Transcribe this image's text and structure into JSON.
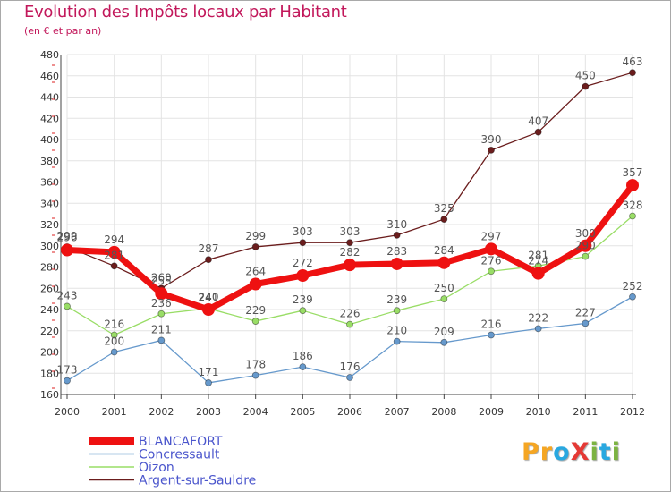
{
  "header": {
    "title": "Evolution des Impôts locaux par Habitant",
    "subtitle": "(en € et par an)"
  },
  "logo": {
    "text": "ProXiti",
    "letters": [
      {
        "ch": "P",
        "color": "#f5a623"
      },
      {
        "ch": "r",
        "color": "#f5a623"
      },
      {
        "ch": "o",
        "color": "#29a8e0"
      },
      {
        "ch": "X",
        "color": "#e53935"
      },
      {
        "ch": "i",
        "color": "#7cb342"
      },
      {
        "ch": "t",
        "color": "#29a8e0"
      },
      {
        "ch": "i",
        "color": "#7cb342"
      }
    ]
  },
  "chart_data": {
    "type": "line",
    "title": "Evolution des Impôts locaux par Habitant",
    "subtitle": "(en € et par an)",
    "xlabel": "",
    "ylabel": "",
    "x": [
      "2000",
      "2001",
      "2002",
      "2003",
      "2004",
      "2005",
      "2006",
      "2007",
      "2008",
      "2009",
      "2010",
      "2011",
      "2012"
    ],
    "ylim": [
      160,
      480
    ],
    "yticks": [
      160,
      180,
      200,
      220,
      240,
      260,
      280,
      300,
      320,
      340,
      360,
      380,
      400,
      420,
      440,
      460,
      480
    ],
    "grid": true,
    "legend_position": "bottom-left",
    "series": [
      {
        "name": "Argent-sur-Sauldre",
        "color": "#6b1d1d",
        "values": [
          299,
          281,
          260,
          287,
          299,
          303,
          303,
          310,
          325,
          390,
          407,
          450,
          463
        ]
      },
      {
        "name": "Oizon",
        "color": "#99dd66",
        "values": [
          243,
          216,
          236,
          241,
          229,
          239,
          226,
          239,
          250,
          276,
          281,
          290,
          328
        ]
      },
      {
        "name": "Concressault",
        "color": "#6699cc",
        "values": [
          173,
          200,
          211,
          171,
          178,
          186,
          176,
          210,
          209,
          216,
          222,
          227,
          252
        ]
      },
      {
        "name": "BLANCAFORT",
        "color": "#ee1111",
        "values": [
          296,
          294,
          255,
          240,
          264,
          272,
          282,
          283,
          284,
          297,
          274,
          300,
          357
        ]
      }
    ]
  }
}
